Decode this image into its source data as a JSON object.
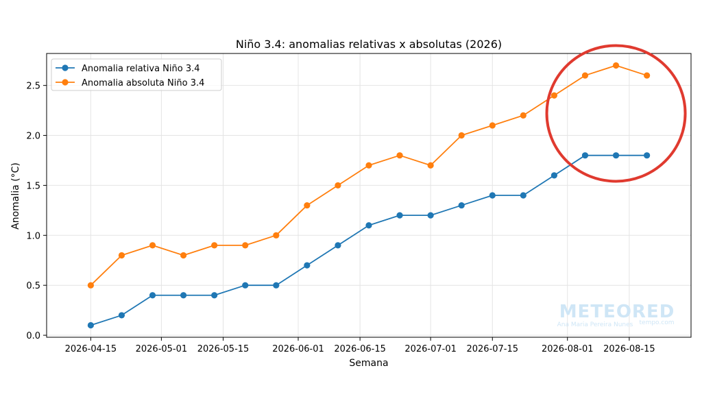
{
  "chart_data": {
    "type": "line",
    "title": "Niño 3.4: anomalias relativas x absolutas (2026)",
    "xlabel": "Semana",
    "ylabel": "Anomalia (°C)",
    "x": [
      "2026-04-15",
      "2026-04-22",
      "2026-04-29",
      "2026-05-06",
      "2026-05-13",
      "2026-05-20",
      "2026-05-27",
      "2026-06-03",
      "2026-06-10",
      "2026-06-17",
      "2026-06-24",
      "2026-07-01",
      "2026-07-08",
      "2026-07-15",
      "2026-07-22",
      "2026-07-29",
      "2026-08-05",
      "2026-08-12",
      "2026-08-19"
    ],
    "xticks": [
      "2026-04-15",
      "2026-05-01",
      "2026-05-15",
      "2026-06-01",
      "2026-06-15",
      "2026-07-01",
      "2026-07-15",
      "2026-08-01",
      "2026-08-15"
    ],
    "xlim": [
      "2026-04-05",
      "2026-08-29"
    ],
    "ylim": [
      -0.02,
      2.82
    ],
    "yticks": [
      0.0,
      0.5,
      1.0,
      1.5,
      2.0,
      2.5
    ],
    "ytick_labels": [
      "0.0",
      "0.5",
      "1.0",
      "1.5",
      "2.0",
      "2.5"
    ],
    "grid": true,
    "legend_position": "top-left",
    "series": [
      {
        "name": "Anomalia relativa Niño 3.4",
        "color": "#1f77b4",
        "values": [
          0.1,
          0.2,
          0.4,
          0.4,
          0.4,
          0.5,
          0.5,
          0.7,
          0.9,
          1.1,
          1.2,
          1.2,
          1.3,
          1.4,
          1.4,
          1.6,
          1.8,
          1.8,
          1.8
        ]
      },
      {
        "name": "Anomalia absoluta Niño 3.4",
        "color": "#ff7f0e",
        "values": [
          0.5,
          0.8,
          0.9,
          0.8,
          0.9,
          0.9,
          1.0,
          1.3,
          1.5,
          1.7,
          1.8,
          1.7,
          2.0,
          2.1,
          2.2,
          2.4,
          2.6,
          2.7,
          2.6
        ]
      }
    ],
    "annotation": {
      "shape": "circle",
      "color": "#e03a2f",
      "x": "2026-08-12",
      "y": 2.22
    }
  },
  "watermark": {
    "brand": "METEORED",
    "author": "Ana Maria Pereira Nunes",
    "site": "tempo.com",
    "color": "#cfe6f6"
  }
}
